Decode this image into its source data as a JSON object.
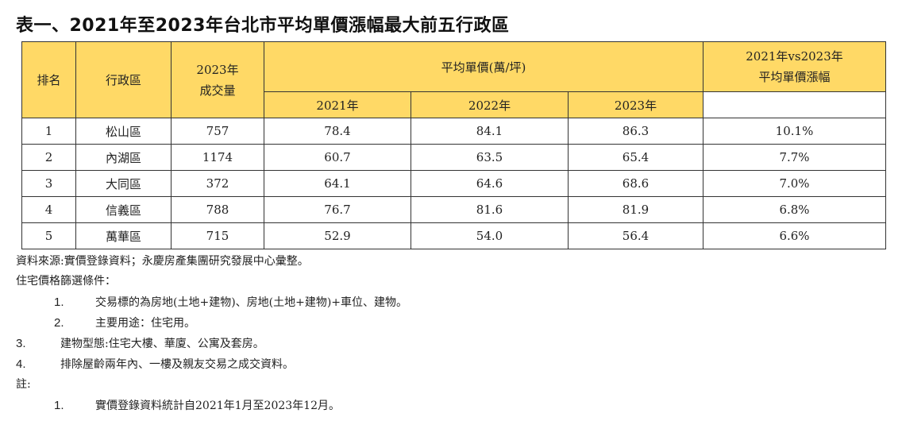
{
  "title": "表一、2021年至2023年台北市平均單價漲幅最大前五行政區",
  "table": {
    "headers": {
      "rank": "排名",
      "district": "行政區",
      "volume_line1": "2023年",
      "volume_line2": "成交量",
      "avg_price": "平均單價(萬/坪)",
      "growth_line1": "2021年vs2023年",
      "growth_line2": "平均單價漲幅",
      "year_2021": "2021年",
      "year_2022": "2022年",
      "year_2023": "2023年"
    },
    "rows": [
      {
        "rank": "1",
        "district": "松山區",
        "volume": "757",
        "p2021": "78.4",
        "p2022": "84.1",
        "p2023": "86.3",
        "growth": "10.1%"
      },
      {
        "rank": "2",
        "district": "內湖區",
        "volume": "1174",
        "p2021": "60.7",
        "p2022": "63.5",
        "p2023": "65.4",
        "growth": "7.7%"
      },
      {
        "rank": "3",
        "district": "大同區",
        "volume": "372",
        "p2021": "64.1",
        "p2022": "64.6",
        "p2023": "68.6",
        "growth": "7.0%"
      },
      {
        "rank": "4",
        "district": "信義區",
        "volume": "788",
        "p2021": "76.7",
        "p2022": "81.6",
        "p2023": "81.9",
        "growth": "6.8%"
      },
      {
        "rank": "5",
        "district": "萬華區",
        "volume": "715",
        "p2021": "52.9",
        "p2022": "54.0",
        "p2023": "56.4",
        "growth": "6.6%"
      }
    ]
  },
  "notes": {
    "source": "資料來源:實價登錄資料；永慶房產集團研究發展中心彙整。",
    "criteria_heading": "住宅價格篩選條件：",
    "criteria": [
      {
        "num": "1.",
        "text": "交易標的為房地(土地+建物)、房地(土地+建物)+車位、建物。"
      },
      {
        "num": "2.",
        "text": "主要用途：住宅用。"
      },
      {
        "num": "3.",
        "text": "建物型態:住宅大樓、華廈、公寓及套房。"
      },
      {
        "num": "4.",
        "text": "排除屋齡兩年內、一樓及親友交易之成交資料。"
      }
    ],
    "remark_heading": "註:",
    "remarks": [
      {
        "num": "1.",
        "text": "實價登錄資料統計自2021年1月至2023年12月。"
      }
    ]
  },
  "colors": {
    "header_fill": "#ffd966",
    "border": "#333333"
  }
}
